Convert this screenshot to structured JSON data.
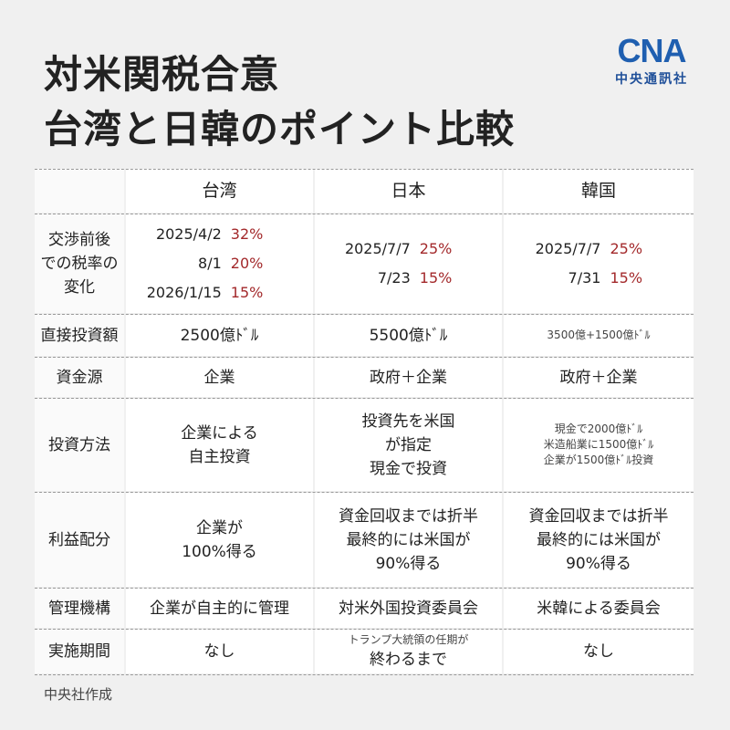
{
  "title": [
    "対米関税合意",
    "台湾と日韓のポイント比較"
  ],
  "logo": {
    "mark": "CNA",
    "name": "中央通訊社"
  },
  "table": {
    "columns": [
      "台湾",
      "日本",
      "韓国"
    ],
    "rows": [
      {
        "label": [
          "交渉前後",
          "での税率の",
          "変化"
        ],
        "cells": [
          [
            {
              "date": "2025/4/2",
              "rate": "32%"
            },
            {
              "date": "8/1",
              "rate": "20%"
            },
            {
              "date": "2026/1/15",
              "rate": "15%"
            }
          ],
          [
            {
              "date": "2025/7/7",
              "rate": "25%"
            },
            {
              "date": "7/23",
              "rate": "15%"
            }
          ],
          [
            {
              "date": "2025/7/7",
              "rate": "25%"
            },
            {
              "date": "7/31",
              "rate": "15%"
            }
          ]
        ]
      },
      {
        "label": [
          "直接投資額"
        ],
        "cells": [
          [
            "2500億ﾄﾞﾙ"
          ],
          [
            "5500億ﾄﾞﾙ"
          ],
          [
            "3500億+1500億ﾄﾞﾙ"
          ]
        ]
      },
      {
        "label": [
          "資金源"
        ],
        "cells": [
          [
            "企業"
          ],
          [
            "政府＋企業"
          ],
          [
            "政府＋企業"
          ]
        ]
      },
      {
        "label": [
          "投資方法"
        ],
        "cells": [
          [
            "企業による",
            "自主投資"
          ],
          [
            "投資先を米国",
            "が指定",
            "現金で投資"
          ],
          [
            "現金で2000億ﾄﾞﾙ",
            "米造船業に1500億ﾄﾞﾙ",
            "企業が1500億ﾄﾞﾙ投資"
          ]
        ]
      },
      {
        "label": [
          "利益配分"
        ],
        "cells": [
          [
            "企業が",
            "100%得る"
          ],
          [
            "資金回収までは折半",
            "最終的には米国が",
            "90%得る"
          ],
          [
            "資金回収までは折半",
            "最終的には米国が",
            "90%得る"
          ]
        ]
      },
      {
        "label": [
          "管理機構"
        ],
        "cells": [
          [
            "企業が自主的に管理"
          ],
          [
            "対米外国投資委員会"
          ],
          [
            "米韓による委員会"
          ]
        ]
      },
      {
        "label": [
          "実施期間"
        ],
        "cells": [
          [
            "なし"
          ],
          [
            "トランプ大統領の任期が",
            "終わるまで"
          ],
          [
            "なし"
          ]
        ]
      }
    ]
  },
  "footer": "中央社作成"
}
